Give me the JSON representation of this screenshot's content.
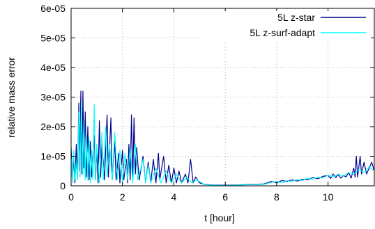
{
  "chart_data": {
    "type": "line",
    "title": "",
    "xlabel": "t [hour]",
    "ylabel": "relative mass error",
    "xlim": [
      0,
      11.8
    ],
    "ylim": [
      0,
      6e-05
    ],
    "x_ticks": [
      {
        "value": 0,
        "label": "0"
      },
      {
        "value": 2,
        "label": "2"
      },
      {
        "value": 4,
        "label": "4"
      },
      {
        "value": 6,
        "label": "6"
      },
      {
        "value": 8,
        "label": "8"
      },
      {
        "value": 10,
        "label": "10"
      }
    ],
    "y_ticks": [
      {
        "value": 0,
        "label": "0"
      },
      {
        "value": 1e-05,
        "label": "1e-05"
      },
      {
        "value": 2e-05,
        "label": "2e-05"
      },
      {
        "value": 3e-05,
        "label": "3e-05"
      },
      {
        "value": 4e-05,
        "label": "4e-05"
      },
      {
        "value": 5e-05,
        "label": "5e-05"
      },
      {
        "value": 6e-05,
        "label": "6e-05"
      }
    ],
    "grid": true,
    "legend_position": "top-right",
    "series": [
      {
        "name": "5L z-star",
        "color": "#00008b",
        "points": [
          [
            0.0,
            1.3e-05
          ],
          [
            0.05,
            2e-06
          ],
          [
            0.1,
            9e-06
          ],
          [
            0.15,
            1e-06
          ],
          [
            0.2,
            1.4e-05
          ],
          [
            0.25,
            3e-06
          ],
          [
            0.3,
            2.8e-05
          ],
          [
            0.33,
            5e-06
          ],
          [
            0.38,
            3.2e-05
          ],
          [
            0.42,
            4e-06
          ],
          [
            0.46,
            3.2e-05
          ],
          [
            0.5,
            6e-06
          ],
          [
            0.55,
            2.5e-05
          ],
          [
            0.6,
            3e-06
          ],
          [
            0.65,
            2e-05
          ],
          [
            0.7,
            2e-06
          ],
          [
            0.75,
            1.5e-05
          ],
          [
            0.8,
            3e-06
          ],
          [
            0.9,
            1.7e-05
          ],
          [
            0.95,
            2e-06
          ],
          [
            1.0,
            1.2e-05
          ],
          [
            1.05,
            1e-06
          ],
          [
            1.1,
            2.2e-05
          ],
          [
            1.15,
            3e-06
          ],
          [
            1.2,
            1.4e-05
          ],
          [
            1.3,
            2e-06
          ],
          [
            1.4,
            2.4e-05
          ],
          [
            1.45,
            3e-06
          ],
          [
            1.55,
            2.3e-05
          ],
          [
            1.6,
            2e-06
          ],
          [
            1.7,
            1.5e-05
          ],
          [
            1.75,
            2e-06
          ],
          [
            1.85,
            1.1e-05
          ],
          [
            1.9,
            1e-06
          ],
          [
            2.0,
            1.2e-05
          ],
          [
            2.05,
            2e-06
          ],
          [
            2.15,
            9e-06
          ],
          [
            2.2,
            1e-06
          ],
          [
            2.25,
            1.4e-05
          ],
          [
            2.3,
            2e-06
          ],
          [
            2.35,
            2.4e-05
          ],
          [
            2.4,
            3e-06
          ],
          [
            2.45,
            2.3e-05
          ],
          [
            2.5,
            4e-06
          ],
          [
            2.55,
            1.3e-05
          ],
          [
            2.65,
            2e-06
          ],
          [
            2.8,
            1e-05
          ],
          [
            2.9,
            1e-06
          ],
          [
            3.0,
            8e-06
          ],
          [
            3.1,
            1e-06
          ],
          [
            3.2,
            9e-06
          ],
          [
            3.3,
            1e-06
          ],
          [
            3.4,
            1.1e-05
          ],
          [
            3.45,
            2e-06
          ],
          [
            3.6,
            1e-05
          ],
          [
            3.7,
            1e-06
          ],
          [
            3.8,
            7e-06
          ],
          [
            3.9,
            1e-06
          ],
          [
            4.0,
            6e-06
          ],
          [
            4.1,
            1e-06
          ],
          [
            4.2,
            5e-06
          ],
          [
            4.3,
            1e-06
          ],
          [
            4.45,
            4e-06
          ],
          [
            4.55,
            1e-06
          ],
          [
            4.65,
            9e-06
          ],
          [
            4.75,
            1e-06
          ],
          [
            4.85,
            3e-06
          ],
          [
            5.0,
            1e-06
          ],
          [
            5.2,
            5e-07
          ],
          [
            5.5,
            3e-07
          ],
          [
            6.0,
            2e-07
          ],
          [
            6.5,
            3e-07
          ],
          [
            7.0,
            5e-07
          ],
          [
            7.5,
            6e-07
          ],
          [
            7.8,
            1.5e-06
          ],
          [
            8.0,
            1e-06
          ],
          [
            8.2,
            1.8e-06
          ],
          [
            8.4,
            1.5e-06
          ],
          [
            8.6,
            2e-06
          ],
          [
            8.8,
            1.6e-06
          ],
          [
            9.0,
            2.2e-06
          ],
          [
            9.2,
            2e-06
          ],
          [
            9.4,
            2.8e-06
          ],
          [
            9.6,
            2.4e-06
          ],
          [
            9.8,
            3.2e-06
          ],
          [
            10.0,
            3.5e-06
          ],
          [
            10.1,
            2.5e-06
          ],
          [
            10.2,
            4e-06
          ],
          [
            10.3,
            2.8e-06
          ],
          [
            10.4,
            3.8e-06
          ],
          [
            10.5,
            2.6e-06
          ],
          [
            10.6,
            3.5e-06
          ],
          [
            10.7,
            3e-06
          ],
          [
            10.8,
            4.5e-06
          ],
          [
            10.9,
            2.6e-06
          ],
          [
            11.0,
            6e-06
          ],
          [
            11.05,
            3e-06
          ],
          [
            11.1,
            1e-05
          ],
          [
            11.15,
            3e-06
          ],
          [
            11.25,
            1e-05
          ],
          [
            11.3,
            4e-06
          ],
          [
            11.4,
            8e-06
          ],
          [
            11.5,
            4e-06
          ],
          [
            11.6,
            6e-06
          ],
          [
            11.7,
            8e-06
          ],
          [
            11.8,
            5e-06
          ]
        ]
      },
      {
        "name": "5L z-surf-adapt",
        "color": "#00ffff",
        "points": [
          [
            0.0,
            1e-05
          ],
          [
            0.05,
            1e-06
          ],
          [
            0.1,
            1.2e-05
          ],
          [
            0.15,
            2e-06
          ],
          [
            0.2,
            8e-06
          ],
          [
            0.25,
            2e-06
          ],
          [
            0.3,
            2.5e-05
          ],
          [
            0.35,
            3e-06
          ],
          [
            0.4,
            2.8e-05
          ],
          [
            0.45,
            4e-06
          ],
          [
            0.5,
            2.2e-05
          ],
          [
            0.55,
            2e-06
          ],
          [
            0.6,
            1.7e-05
          ],
          [
            0.65,
            2e-06
          ],
          [
            0.7,
            1.6e-05
          ],
          [
            0.75,
            1e-06
          ],
          [
            0.8,
            1.2e-05
          ],
          [
            0.85,
            2e-06
          ],
          [
            0.9,
            2.75e-05
          ],
          [
            0.95,
            2e-06
          ],
          [
            1.0,
            1.4e-05
          ],
          [
            1.1,
            1e-06
          ],
          [
            1.2,
            1.8e-05
          ],
          [
            1.25,
            2e-06
          ],
          [
            1.35,
            2e-05
          ],
          [
            1.4,
            3e-06
          ],
          [
            1.5,
            1.4e-05
          ],
          [
            1.6,
            2e-06
          ],
          [
            1.7,
            1.8e-05
          ],
          [
            1.8,
            2e-06
          ],
          [
            1.9,
            1.2e-05
          ],
          [
            2.0,
            1e-06
          ],
          [
            2.1,
            1.1e-05
          ],
          [
            2.2,
            2e-06
          ],
          [
            2.3,
            1.3e-05
          ],
          [
            2.4,
            1e-06
          ],
          [
            2.5,
            1.4e-05
          ],
          [
            2.6,
            2e-06
          ],
          [
            2.8,
            9e-06
          ],
          [
            2.9,
            1e-06
          ],
          [
            3.0,
            7e-06
          ],
          [
            3.1,
            1e-06
          ],
          [
            3.3,
            6e-06
          ],
          [
            3.5,
            1e-06
          ],
          [
            3.7,
            5e-06
          ],
          [
            3.9,
            1e-06
          ],
          [
            4.1,
            4e-06
          ],
          [
            4.3,
            1e-06
          ],
          [
            4.5,
            3e-06
          ],
          [
            4.7,
            1e-06
          ],
          [
            4.9,
            2e-06
          ],
          [
            5.2,
            4e-07
          ],
          [
            5.5,
            2e-07
          ],
          [
            6.0,
            1e-07
          ],
          [
            6.5,
            2e-07
          ],
          [
            7.0,
            4e-07
          ],
          [
            7.5,
            5e-07
          ],
          [
            7.8,
            1.2e-06
          ],
          [
            8.0,
            1.5e-06
          ],
          [
            8.2,
            1e-06
          ],
          [
            8.4,
            1.8e-06
          ],
          [
            8.6,
            1.4e-06
          ],
          [
            8.8,
            2.2e-06
          ],
          [
            9.0,
            1.8e-06
          ],
          [
            9.2,
            2.6e-06
          ],
          [
            9.4,
            2.2e-06
          ],
          [
            9.6,
            3e-06
          ],
          [
            9.8,
            2.6e-06
          ],
          [
            10.0,
            3.6e-06
          ],
          [
            10.2,
            3e-06
          ],
          [
            10.4,
            4e-06
          ],
          [
            10.6,
            3.2e-06
          ],
          [
            10.8,
            4.5e-06
          ],
          [
            11.0,
            4e-06
          ],
          [
            11.2,
            5.5e-06
          ],
          [
            11.4,
            4.5e-06
          ],
          [
            11.6,
            6.5e-06
          ],
          [
            11.8,
            5e-06
          ]
        ]
      }
    ]
  }
}
